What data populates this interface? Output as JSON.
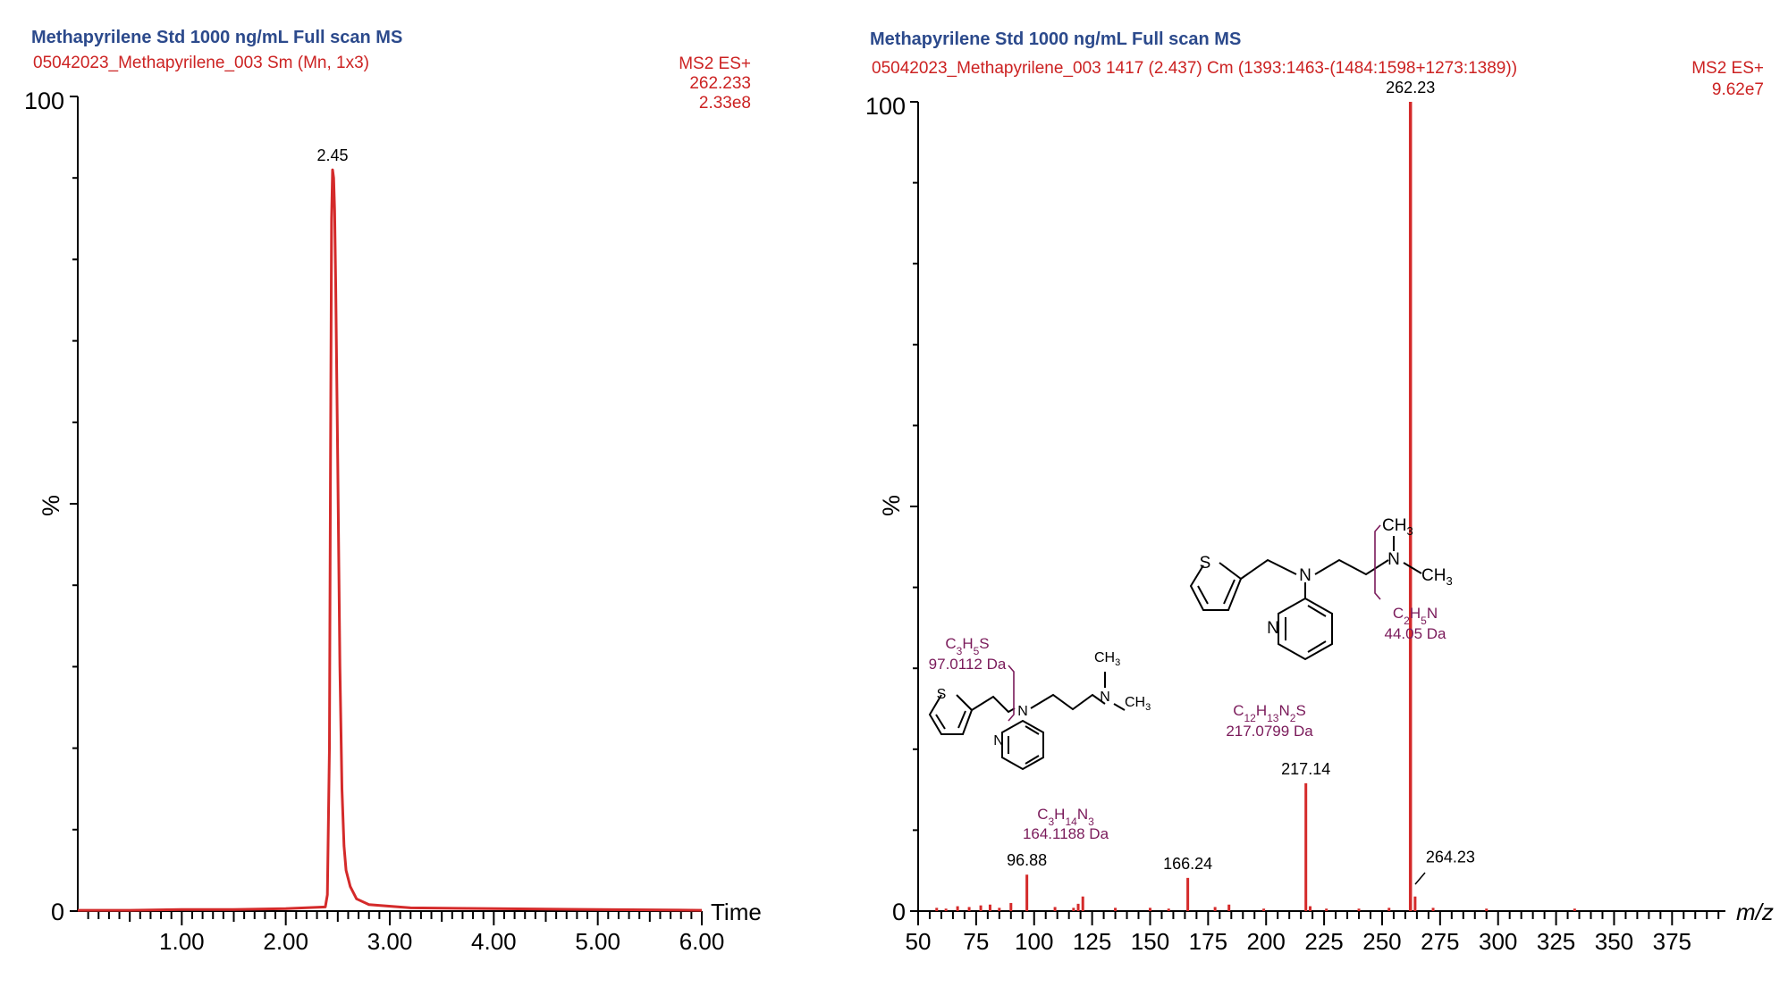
{
  "chart_data": [
    {
      "type": "line",
      "title": "Methapyrilene Std 1000 ng/mL Full scan MS",
      "subtitle": "05042023_Methapyrilene_003 Sm (Mn, 1x3)",
      "info_lines": [
        "MS2 ES+",
        "262.233",
        "2.33e8"
      ],
      "xlabel": "Time",
      "ylabel": "%",
      "xlim": [
        0,
        6.0
      ],
      "ylim": [
        0,
        100
      ],
      "xticks": [
        "1.00",
        "2.00",
        "3.00",
        "4.00",
        "5.00",
        "6.00"
      ],
      "xtick_values": [
        1,
        2,
        3,
        4,
        5,
        6
      ],
      "yticks": [
        "0",
        "100"
      ],
      "ytick_values": [
        0,
        100
      ],
      "series": [
        {
          "x": [
            0.0,
            0.5,
            1.0,
            1.5,
            2.0,
            2.38,
            2.4,
            2.42,
            2.43,
            2.44,
            2.45,
            2.46,
            2.47,
            2.48,
            2.5,
            2.52,
            2.54,
            2.56,
            2.58,
            2.62,
            2.68,
            2.8,
            3.2,
            4.0,
            5.0,
            6.0
          ],
          "y": [
            0.1,
            0.1,
            0.2,
            0.2,
            0.3,
            0.5,
            2.0,
            20.0,
            55.0,
            85.0,
            91.0,
            90.0,
            86.0,
            77.0,
            55.0,
            30.0,
            15.0,
            8.0,
            5.0,
            3.0,
            1.5,
            0.8,
            0.4,
            0.3,
            0.2,
            0.1
          ]
        }
      ],
      "annotations": [
        {
          "label": "2.45",
          "x": 2.45,
          "y": 91
        }
      ]
    },
    {
      "type": "bar",
      "title": "Methapyrilene Std 1000 ng/mL Full scan MS",
      "subtitle": "05042023_Methapyrilene_003 1417 (2.437) Cm (1393:1463-(1484:1598+1273:1389))",
      "info_lines": [
        "MS2 ES+",
        "9.62e7"
      ],
      "xlabel": "m/z",
      "ylabel": "%",
      "xlim": [
        50,
        398
      ],
      "ylim": [
        0,
        100
      ],
      "xticks": [
        "50",
        "75",
        "100",
        "125",
        "150",
        "175",
        "200",
        "225",
        "250",
        "275",
        "300",
        "325",
        "350",
        "375"
      ],
      "xtick_values": [
        50,
        75,
        100,
        125,
        150,
        175,
        200,
        225,
        250,
        275,
        300,
        325,
        350,
        375
      ],
      "yticks": [
        "0",
        "100"
      ],
      "ytick_values": [
        0,
        100
      ],
      "peaks": {
        "mz": [
          58,
          62,
          67,
          72,
          77,
          81,
          85,
          90,
          96.88,
          109,
          117,
          119,
          121,
          135,
          150,
          158,
          166.24,
          178,
          184,
          199,
          217.14,
          219,
          226,
          240,
          253,
          262.23,
          264.23,
          272,
          295,
          333
        ],
        "intensity": [
          0.4,
          0.3,
          0.6,
          0.5,
          0.7,
          0.8,
          0.4,
          1.0,
          4.5,
          0.5,
          0.4,
          0.9,
          1.8,
          0.4,
          0.4,
          0.3,
          4.1,
          0.5,
          0.8,
          0.3,
          15.8,
          0.6,
          0.3,
          0.3,
          0.4,
          100,
          1.8,
          0.4,
          0.3,
          0.3
        ]
      },
      "peak_labels": [
        {
          "label": "96.88",
          "mz": 96.88
        },
        {
          "label": "166.24",
          "mz": 166.24
        },
        {
          "label": "217.14",
          "mz": 217.14
        },
        {
          "label": "262.23",
          "mz": 262.23
        },
        {
          "label": "264.23",
          "mz": 264.23
        }
      ],
      "fragments": [
        {
          "formula_html": "C<tspan baseline-shift='sub' font-size='12'>3</tspan>H<tspan baseline-shift='sub' font-size='12'>5</tspan>S",
          "mass": "97.0112 Da"
        },
        {
          "formula_html": "C<tspan baseline-shift='sub' font-size='12'>3</tspan>H<tspan baseline-shift='sub' font-size='12'>14</tspan>N<tspan baseline-shift='sub' font-size='12'>3</tspan>",
          "mass": "164.1188 Da"
        },
        {
          "formula_html": "C<tspan baseline-shift='sub' font-size='12'>12</tspan>H<tspan baseline-shift='sub' font-size='12'>13</tspan>N<tspan baseline-shift='sub' font-size='12'>2</tspan>S",
          "mass": "217.0799 Da"
        },
        {
          "formula_html": "C<tspan baseline-shift='sub' font-size='12'>2</tspan>H<tspan baseline-shift='sub' font-size='12'>5</tspan>N",
          "mass": "44.05 Da"
        }
      ],
      "structure_labels": {
        "s": "S",
        "n": "N",
        "ch3": "CH",
        "sub3": "3"
      }
    }
  ]
}
